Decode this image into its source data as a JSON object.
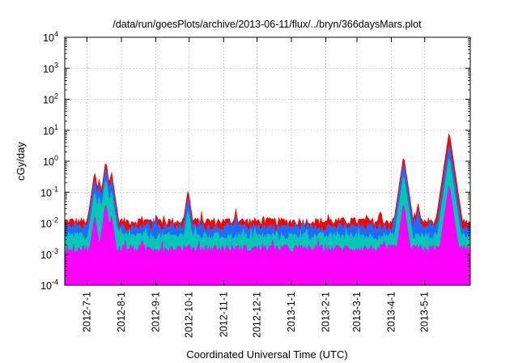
{
  "chart_data": {
    "type": "area",
    "title": "/data/run/goesPlots/archive/2013-06-11/flux/../bryn/366daysMars.plot",
    "xlabel": "Coordinated Universal Time (UTC)",
    "ylabel": "cGy/day",
    "yscale": "log",
    "ylim": [
      0.0001,
      10000
    ],
    "xlim": [
      "2012-06-11",
      "2013-06-11"
    ],
    "grid": true,
    "y_ticks": [
      {
        "base": "10",
        "exp": "-4"
      },
      {
        "base": "10",
        "exp": "-3"
      },
      {
        "base": "10",
        "exp": "-2"
      },
      {
        "base": "10",
        "exp": "-1"
      },
      {
        "base": "10",
        "exp": "0"
      },
      {
        "base": "10",
        "exp": "1"
      },
      {
        "base": "10",
        "exp": "2"
      },
      {
        "base": "10",
        "exp": "3"
      },
      {
        "base": "10",
        "exp": "4"
      }
    ],
    "x_ticks": [
      {
        "date": "2012-07-01",
        "label": "2012-7-1"
      },
      {
        "date": "2012-08-01",
        "label": "2012-8-1"
      },
      {
        "date": "2012-09-01",
        "label": "2012-9-1"
      },
      {
        "date": "2012-10-01",
        "label": "2012-10-1"
      },
      {
        "date": "2012-11-01",
        "label": "2012-11-1"
      },
      {
        "date": "2012-12-01",
        "label": "2012-12-1"
      },
      {
        "date": "2013-01-01",
        "label": "2013-1-1"
      },
      {
        "date": "2013-02-01",
        "label": "2013-2-1"
      },
      {
        "date": "2013-03-01",
        "label": "2013-3-1"
      },
      {
        "date": "2013-04-01",
        "label": "2013-4-1"
      },
      {
        "date": "2013-05-01",
        "label": "2013-5-1"
      }
    ],
    "series": [
      {
        "color": "#ff0000",
        "baseline": 0.012,
        "peaks": [
          [
            "2012-07-08",
            0.5
          ],
          [
            "2012-07-12",
            0.3
          ],
          [
            "2012-07-18",
            1.1
          ],
          [
            "2012-07-23",
            0.5
          ],
          [
            "2012-09-01",
            0.02
          ],
          [
            "2012-09-30",
            0.13
          ],
          [
            "2012-11-12",
            0.03
          ],
          [
            "2013-04-12",
            1.6
          ],
          [
            "2013-04-25",
            0.05
          ],
          [
            "2013-05-18",
            0.14
          ],
          [
            "2013-05-23",
            9.5
          ]
        ]
      },
      {
        "color": "#1e6bff",
        "baseline": 0.008,
        "peaks": [
          [
            "2012-07-08",
            0.3
          ],
          [
            "2012-07-12",
            0.2
          ],
          [
            "2012-07-18",
            0.7
          ],
          [
            "2012-07-23",
            0.3
          ],
          [
            "2012-09-01",
            0.015
          ],
          [
            "2012-09-30",
            0.08
          ],
          [
            "2012-11-12",
            0.02
          ],
          [
            "2013-04-12",
            1.0
          ],
          [
            "2013-04-25",
            0.03
          ],
          [
            "2013-05-18",
            0.08
          ],
          [
            "2013-05-23",
            4.0
          ]
        ]
      },
      {
        "color": "#00c8b4",
        "baseline": 0.004,
        "peaks": [
          [
            "2012-07-08",
            0.12
          ],
          [
            "2012-07-12",
            0.08
          ],
          [
            "2012-07-18",
            0.3
          ],
          [
            "2012-07-23",
            0.12
          ],
          [
            "2012-09-30",
            0.03
          ],
          [
            "2013-04-12",
            0.4
          ],
          [
            "2013-05-18",
            0.03
          ],
          [
            "2013-05-23",
            1.5
          ]
        ]
      },
      {
        "color": "#ff00ff",
        "baseline": 0.0016,
        "peaks": [
          [
            "2012-07-08",
            0.02
          ],
          [
            "2012-07-18",
            0.05
          ],
          [
            "2012-07-23",
            0.02
          ],
          [
            "2013-04-12",
            0.05
          ],
          [
            "2013-05-23",
            0.2
          ]
        ]
      }
    ]
  }
}
